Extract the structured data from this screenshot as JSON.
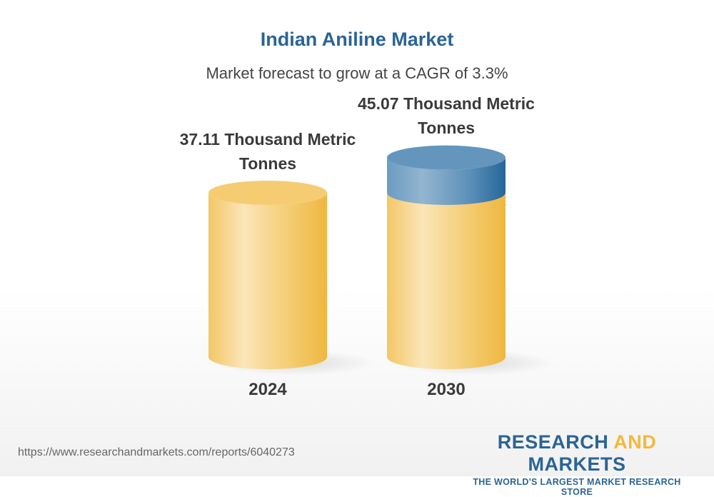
{
  "chart_data": {
    "type": "bar",
    "title": "Indian Aniline Market",
    "subtitle": "Market forecast to grow at a CAGR of 3.3%",
    "categories": [
      "2024",
      "2030"
    ],
    "values": [
      37.11,
      45.07
    ],
    "data_labels": [
      "37.11 Thousand Metric Tonnes",
      "45.07 Thousand Metric Tonnes"
    ],
    "unit": "Thousand Metric Tonnes",
    "style": "3d-cylinder",
    "colors": {
      "base": "#f2c257",
      "growth": "#5b8fb9"
    }
  },
  "footer": {
    "url": "https://www.researchandmarkets.com/reports/6040273",
    "logo_part1": "RESEARCH ",
    "logo_part2": "AND",
    "logo_part3": " MARKETS",
    "tagline": "THE WORLD'S LARGEST MARKET RESEARCH STORE"
  }
}
